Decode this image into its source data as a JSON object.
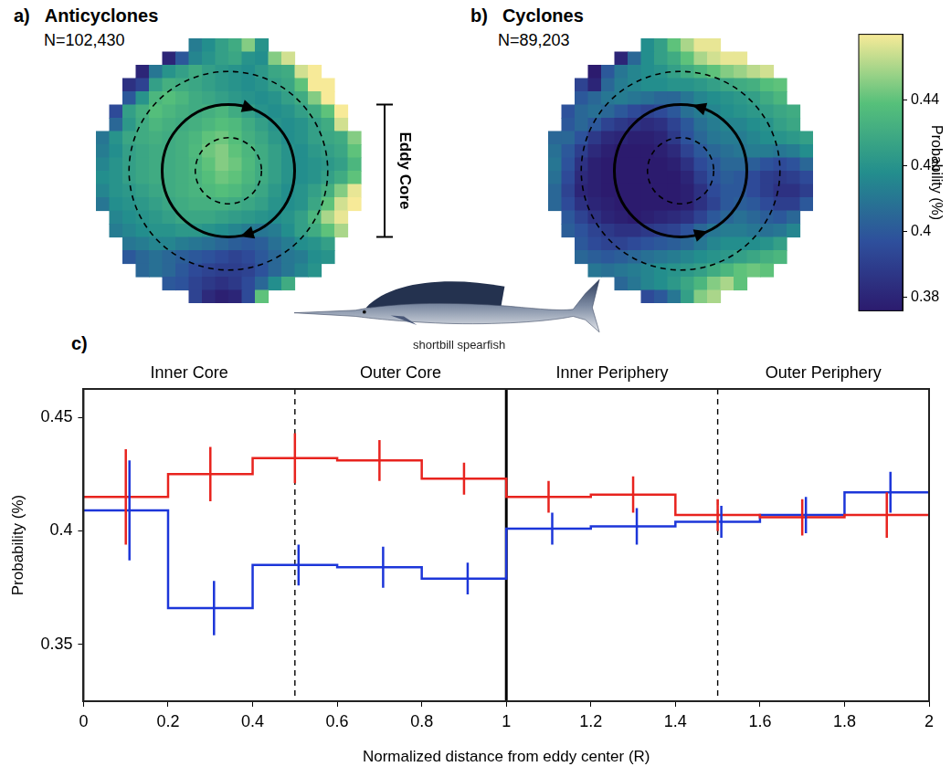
{
  "chart_data": [
    {
      "type": "heatmap",
      "letter": "a)",
      "title": "Anticyclones",
      "subtitle": "N=102,430",
      "annotations": [
        "Eddy Core"
      ],
      "cells": [
        [
          null,
          null,
          null,
          null,
          null,
          null,
          null,
          0.412,
          0.418,
          0.425,
          0.43,
          0.445,
          0.42,
          null,
          null,
          null,
          null,
          null,
          null,
          null
        ],
        [
          null,
          null,
          null,
          null,
          null,
          0.38,
          0.4,
          0.415,
          0.42,
          0.425,
          0.428,
          0.42,
          0.418,
          0.445,
          0.455,
          null,
          null,
          null,
          null,
          null
        ],
        [
          null,
          null,
          null,
          0.38,
          0.41,
          0.42,
          0.425,
          0.43,
          0.425,
          0.422,
          0.42,
          0.418,
          0.422,
          0.428,
          0.43,
          0.455,
          0.46,
          null,
          null,
          null
        ],
        [
          null,
          null,
          0.385,
          0.392,
          0.425,
          0.432,
          0.43,
          0.428,
          0.425,
          0.422,
          0.42,
          0.418,
          0.42,
          0.425,
          0.428,
          0.44,
          0.46,
          0.46,
          null,
          null
        ],
        [
          null,
          null,
          0.4,
          0.42,
          0.435,
          0.438,
          0.435,
          0.43,
          0.428,
          0.425,
          0.422,
          0.42,
          0.418,
          0.42,
          0.425,
          0.43,
          0.445,
          0.46,
          null,
          null
        ],
        [
          null,
          0.395,
          0.425,
          0.432,
          0.438,
          0.435,
          0.432,
          0.43,
          0.432,
          0.435,
          0.43,
          0.425,
          0.42,
          0.418,
          0.42,
          0.425,
          0.43,
          0.44,
          0.46,
          null
        ],
        [
          null,
          0.405,
          0.422,
          0.43,
          0.435,
          0.432,
          0.43,
          0.432,
          0.435,
          0.438,
          0.436,
          0.43,
          0.425,
          0.42,
          0.418,
          0.42,
          0.425,
          0.43,
          0.455,
          null
        ],
        [
          0.41,
          0.42,
          0.428,
          0.43,
          0.432,
          0.43,
          0.432,
          0.435,
          0.44,
          0.442,
          0.438,
          0.432,
          0.428,
          0.422,
          0.418,
          0.42,
          0.425,
          0.428,
          0.43,
          0.445
        ],
        [
          0.412,
          0.418,
          0.425,
          0.428,
          0.43,
          0.43,
          0.432,
          0.436,
          0.442,
          0.445,
          0.44,
          0.435,
          0.43,
          0.425,
          0.42,
          0.418,
          0.422,
          0.425,
          0.428,
          0.44
        ],
        [
          0.415,
          0.42,
          0.425,
          0.428,
          0.43,
          0.43,
          0.432,
          0.435,
          0.44,
          0.445,
          0.442,
          0.436,
          0.43,
          0.425,
          0.42,
          0.418,
          0.42,
          0.422,
          0.425,
          0.435
        ],
        [
          0.418,
          0.42,
          0.425,
          0.428,
          0.43,
          0.43,
          0.432,
          0.434,
          0.438,
          0.442,
          0.44,
          0.435,
          0.43,
          0.425,
          0.42,
          0.418,
          0.42,
          0.425,
          0.43,
          0.44
        ],
        [
          0.415,
          0.42,
          0.422,
          0.425,
          0.428,
          0.43,
          0.432,
          0.434,
          0.436,
          0.438,
          0.436,
          0.432,
          0.428,
          0.422,
          0.418,
          0.42,
          0.425,
          0.432,
          0.445,
          0.458
        ],
        [
          0.41,
          0.418,
          0.42,
          0.422,
          0.425,
          0.428,
          0.43,
          0.432,
          0.432,
          0.432,
          0.43,
          0.428,
          0.425,
          0.42,
          0.418,
          0.42,
          0.428,
          0.44,
          0.455,
          0.46
        ],
        [
          null,
          0.415,
          0.418,
          0.42,
          0.422,
          0.425,
          0.428,
          0.428,
          0.428,
          0.426,
          0.424,
          0.422,
          0.42,
          0.418,
          0.42,
          0.425,
          0.435,
          0.45,
          0.458,
          null
        ],
        [
          null,
          0.412,
          0.415,
          0.418,
          0.42,
          0.42,
          0.422,
          0.422,
          0.42,
          0.418,
          0.415,
          0.412,
          0.41,
          0.412,
          0.418,
          0.425,
          0.43,
          0.44,
          0.45,
          null
        ],
        [
          null,
          null,
          0.41,
          0.412,
          0.415,
          0.415,
          0.412,
          0.41,
          0.408,
          0.405,
          0.402,
          0.4,
          0.402,
          0.408,
          0.412,
          0.418,
          0.42,
          0.425,
          null,
          null
        ],
        [
          null,
          null,
          0.4,
          0.405,
          0.408,
          0.405,
          0.402,
          0.4,
          0.398,
          0.395,
          0.392,
          0.395,
          0.4,
          0.405,
          0.41,
          0.412,
          0.418,
          0.42,
          null,
          null
        ],
        [
          null,
          null,
          null,
          0.405,
          0.408,
          0.405,
          0.4,
          0.395,
          0.392,
          0.39,
          0.39,
          0.392,
          0.398,
          0.405,
          0.41,
          0.415,
          0.42,
          null,
          null,
          null
        ],
        [
          null,
          null,
          null,
          null,
          null,
          0.4,
          0.398,
          0.392,
          0.388,
          0.385,
          0.388,
          0.395,
          0.405,
          0.418,
          0.43,
          null,
          null,
          null,
          null,
          null
        ],
        [
          null,
          null,
          null,
          null,
          null,
          null,
          null,
          0.392,
          0.382,
          0.378,
          0.38,
          0.395,
          0.44,
          null,
          null,
          null,
          null,
          null,
          null,
          null
        ]
      ]
    },
    {
      "type": "heatmap",
      "letter": "b)",
      "title": "Cyclones",
      "subtitle": "N=89,203",
      "cells": [
        [
          null,
          null,
          null,
          null,
          null,
          null,
          null,
          0.418,
          0.425,
          0.44,
          0.45,
          0.458,
          0.458,
          null,
          null,
          null,
          null,
          null,
          null,
          null
        ],
        [
          null,
          null,
          null,
          null,
          null,
          0.38,
          0.405,
          0.418,
          0.425,
          0.43,
          0.44,
          0.45,
          0.455,
          0.458,
          0.458,
          null,
          null,
          null,
          null,
          null
        ],
        [
          null,
          null,
          null,
          0.375,
          0.4,
          0.41,
          0.415,
          0.418,
          0.42,
          0.425,
          0.43,
          0.435,
          0.44,
          0.445,
          0.448,
          0.452,
          0.455,
          null,
          null,
          null
        ],
        [
          null,
          null,
          0.392,
          0.38,
          0.405,
          0.412,
          0.415,
          0.418,
          0.418,
          0.42,
          0.42,
          0.422,
          0.425,
          0.428,
          0.43,
          0.432,
          0.438,
          0.44,
          null,
          null
        ],
        [
          null,
          null,
          0.4,
          0.405,
          0.41,
          0.412,
          0.41,
          0.408,
          0.405,
          0.405,
          0.41,
          0.415,
          0.418,
          0.42,
          0.422,
          0.425,
          0.43,
          0.435,
          null,
          null
        ],
        [
          null,
          0.398,
          0.405,
          0.408,
          0.405,
          0.4,
          0.395,
          0.392,
          0.395,
          0.4,
          0.408,
          0.412,
          0.415,
          0.418,
          0.42,
          0.422,
          0.425,
          0.428,
          0.43,
          null
        ],
        [
          null,
          0.4,
          0.405,
          0.4,
          0.392,
          0.388,
          0.385,
          0.383,
          0.385,
          0.392,
          0.4,
          0.408,
          0.412,
          0.415,
          0.415,
          0.418,
          0.42,
          0.425,
          0.428,
          null
        ],
        [
          0.405,
          0.405,
          0.398,
          0.388,
          0.382,
          0.38,
          0.378,
          0.378,
          0.38,
          0.388,
          0.398,
          0.405,
          0.41,
          0.412,
          0.412,
          0.415,
          0.418,
          0.42,
          0.422,
          0.425
        ],
        [
          0.408,
          0.4,
          0.39,
          0.382,
          0.378,
          0.376,
          0.376,
          0.376,
          0.378,
          0.382,
          0.392,
          0.4,
          0.405,
          0.408,
          0.41,
          0.412,
          0.412,
          0.41,
          0.412,
          0.418
        ],
        [
          0.41,
          0.398,
          0.385,
          0.378,
          0.376,
          0.376,
          0.376,
          0.376,
          0.376,
          0.378,
          0.385,
          0.395,
          0.4,
          0.405,
          0.405,
          0.402,
          0.398,
          0.395,
          0.398,
          0.405
        ],
        [
          0.408,
          0.395,
          0.382,
          0.378,
          0.376,
          0.376,
          0.376,
          0.376,
          0.376,
          0.376,
          0.38,
          0.39,
          0.398,
          0.402,
          0.4,
          0.395,
          0.39,
          0.388,
          0.39,
          0.395
        ],
        [
          0.405,
          0.392,
          0.38,
          0.378,
          0.376,
          0.376,
          0.376,
          0.376,
          0.376,
          0.376,
          0.378,
          0.385,
          0.395,
          0.4,
          0.4,
          0.395,
          0.39,
          0.385,
          0.385,
          0.39
        ],
        [
          0.405,
          0.395,
          0.385,
          0.38,
          0.378,
          0.376,
          0.376,
          0.376,
          0.376,
          0.376,
          0.378,
          0.385,
          0.392,
          0.4,
          0.402,
          0.4,
          0.395,
          0.39,
          0.39,
          0.4
        ],
        [
          null,
          0.4,
          0.392,
          0.385,
          0.38,
          0.378,
          0.376,
          0.378,
          0.38,
          0.382,
          0.385,
          0.392,
          0.4,
          0.405,
          0.408,
          0.405,
          0.402,
          0.4,
          0.405,
          null
        ],
        [
          null,
          0.402,
          0.398,
          0.392,
          0.388,
          0.385,
          0.385,
          0.388,
          0.39,
          0.392,
          0.398,
          0.405,
          0.41,
          0.412,
          0.412,
          0.41,
          0.408,
          0.41,
          0.415,
          null
        ],
        [
          null,
          null,
          0.4,
          0.395,
          0.392,
          0.392,
          0.395,
          0.398,
          0.4,
          0.402,
          0.405,
          0.41,
          0.415,
          0.418,
          0.418,
          0.418,
          0.42,
          0.425,
          null,
          null
        ],
        [
          null,
          null,
          0.405,
          0.402,
          0.4,
          0.402,
          0.405,
          0.408,
          0.41,
          0.412,
          0.415,
          0.418,
          0.42,
          0.422,
          0.425,
          0.428,
          0.432,
          0.435,
          null,
          null
        ],
        [
          null,
          null,
          null,
          0.41,
          0.408,
          0.41,
          0.412,
          0.415,
          0.418,
          0.42,
          0.422,
          0.425,
          0.43,
          0.435,
          0.44,
          0.442,
          0.44,
          null,
          null,
          null
        ],
        [
          null,
          null,
          null,
          null,
          null,
          0.405,
          0.41,
          0.415,
          0.418,
          0.422,
          0.428,
          0.435,
          0.445,
          0.45,
          0.44,
          null,
          null,
          null,
          null,
          null
        ],
        [
          null,
          null,
          null,
          null,
          null,
          null,
          null,
          0.395,
          0.4,
          0.41,
          0.425,
          0.445,
          0.45,
          null,
          null,
          null,
          null,
          null,
          null,
          null
        ]
      ]
    },
    {
      "type": "line",
      "letter": "c)",
      "xlabel": "Normalized distance from eddy center (R)",
      "ylabel": "Probability (%)",
      "bins": [
        0,
        0.2,
        0.4,
        0.6,
        0.8,
        1,
        1.2,
        1.4,
        1.6,
        1.8,
        2
      ],
      "xlim": [
        0,
        2
      ],
      "xticks": [
        0,
        0.2,
        0.4,
        0.6,
        0.8,
        1,
        1.2,
        1.4,
        1.6,
        1.8,
        2
      ],
      "ylim": [
        0.325,
        0.4625
      ],
      "yticks": [
        0.35,
        0.4,
        0.45
      ],
      "grid": false,
      "series": [
        {
          "name": "Anticyclones",
          "color": "#e8231e",
          "values": [
            0.415,
            0.425,
            0.432,
            0.431,
            0.423,
            0.415,
            0.416,
            0.407,
            0.406,
            0.407
          ],
          "errors": [
            0.021,
            0.012,
            0.011,
            0.009,
            0.007,
            0.007,
            0.008,
            0.007,
            0.008,
            0.01
          ]
        },
        {
          "name": "Cyclones",
          "color": "#1c36d9",
          "values": [
            0.409,
            0.366,
            0.385,
            0.384,
            0.379,
            0.401,
            0.402,
            0.404,
            0.407,
            0.417
          ],
          "errors": [
            0.022,
            0.012,
            0.009,
            0.009,
            0.007,
            0.007,
            0.008,
            0.007,
            0.008,
            0.009
          ]
        }
      ],
      "regions": [
        {
          "label": "Inner Core",
          "from": 0,
          "to": 0.5
        },
        {
          "label": "Outer Core",
          "from": 0.5,
          "to": 1
        },
        {
          "label": "Inner Periphery",
          "from": 1,
          "to": 1.5
        },
        {
          "label": "Outer Periphery",
          "from": 1.5,
          "to": 2
        }
      ],
      "boundaries": [
        {
          "x": 0.5,
          "line_style": "dashed"
        },
        {
          "x": 1,
          "line_style": "solid"
        },
        {
          "x": 1.5,
          "line_style": "dashed"
        }
      ]
    }
  ],
  "colorbar": {
    "label": "Probability (%)",
    "range": [
      0.376,
      0.46
    ],
    "ticks": [
      0.38,
      0.4,
      0.42,
      0.44
    ]
  },
  "caption": "shortbill spearfish"
}
